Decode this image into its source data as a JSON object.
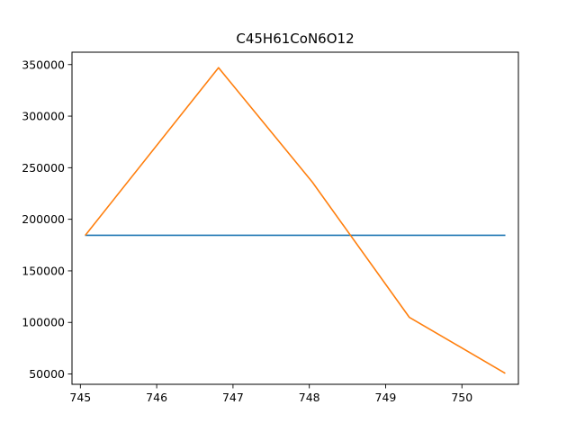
{
  "chart_data": {
    "type": "line",
    "title": "C45H61CoN6O12",
    "xlabel": "",
    "ylabel": "",
    "xlim": [
      744.89,
      750.74
    ],
    "ylim": [
      40000,
      362000
    ],
    "xticks": [
      745,
      746,
      747,
      748,
      749,
      750
    ],
    "xtick_labels": [
      "745",
      "746",
      "747",
      "748",
      "749",
      "750"
    ],
    "yticks": [
      50000,
      100000,
      150000,
      200000,
      250000,
      300000,
      350000
    ],
    "ytick_labels": [
      "50000",
      "100000",
      "150000",
      "200000",
      "250000",
      "300000",
      "350000"
    ],
    "grid": false,
    "legend": "none",
    "series": [
      {
        "color": "#1f77b4",
        "x": [
          745.07,
          750.56
        ],
        "y": [
          184500,
          184500
        ]
      },
      {
        "color": "#ff7f0e",
        "x": [
          745.07,
          746.81,
          748.04,
          749.31,
          750.56
        ],
        "y": [
          185000,
          347000,
          236000,
          105000,
          51000
        ]
      }
    ]
  }
}
